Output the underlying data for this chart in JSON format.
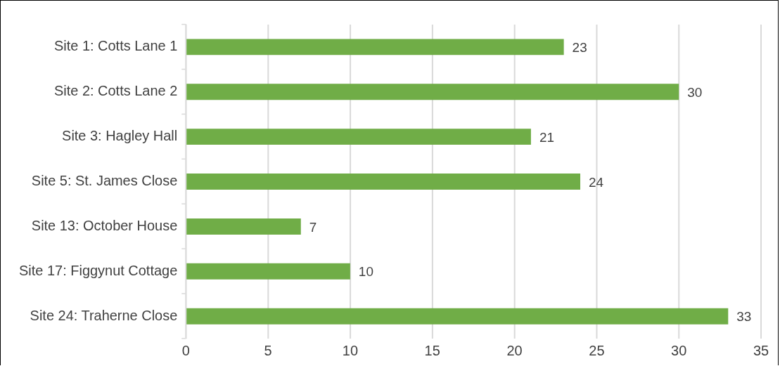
{
  "chart_data": {
    "type": "bar",
    "orientation": "horizontal",
    "categories": [
      "Site 1: Cotts Lane 1",
      "Site 2: Cotts Lane 2",
      "Site 3: Hagley Hall",
      "Site 5: St. James Close",
      "Site 13: October House",
      "Site 17: Figgynut Cottage",
      "Site 24: Traherne Close"
    ],
    "values": [
      23,
      30,
      21,
      24,
      7,
      10,
      33
    ],
    "color": "#70ad47",
    "xlim": [
      0,
      35
    ],
    "xticks": [
      0,
      5,
      10,
      15,
      20,
      25,
      30,
      35
    ],
    "grid": "x",
    "legend": false,
    "data_labels": true
  }
}
